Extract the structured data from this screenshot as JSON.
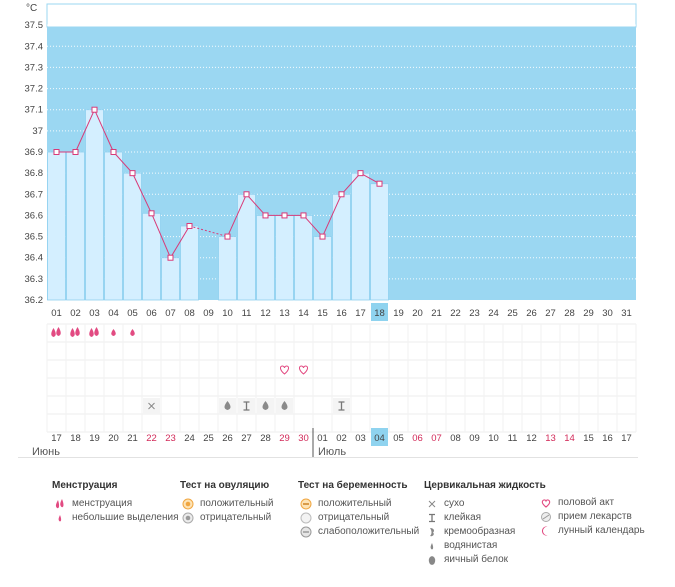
{
  "unit_label": "°C",
  "months": {
    "first": "Июнь",
    "second": "Июль"
  },
  "chart_data": {
    "type": "line",
    "ylim": [
      36.2,
      37.6
    ],
    "y_ticks": [
      "36.2",
      "36.3",
      "36.4",
      "36.5",
      "36.6",
      "36.7",
      "36.8",
      "36.9",
      "37",
      "37.1",
      "37.2",
      "37.3",
      "37.4",
      "37.5"
    ],
    "x_cycle_days": [
      "01",
      "02",
      "03",
      "04",
      "05",
      "06",
      "07",
      "08",
      "09",
      "10",
      "11",
      "12",
      "13",
      "14",
      "15",
      "16",
      "17",
      "18",
      "19",
      "20",
      "21",
      "22",
      "23",
      "24",
      "25",
      "26",
      "27",
      "28",
      "29",
      "30",
      "31"
    ],
    "temperatures": [
      36.9,
      36.9,
      37.1,
      36.9,
      36.8,
      36.61,
      36.4,
      36.55,
      null,
      36.5,
      36.7,
      36.6,
      36.6,
      36.6,
      36.5,
      36.7,
      36.8,
      36.75,
      null,
      null,
      null,
      null,
      null,
      null,
      null,
      null,
      null,
      null,
      null,
      null,
      null
    ],
    "gap_dashed_between": [
      8,
      10
    ],
    "current_day": "18",
    "calendar_dates": [
      "17",
      "18",
      "19",
      "20",
      "21",
      "22",
      "23",
      "24",
      "25",
      "26",
      "27",
      "28",
      "29",
      "30",
      "01",
      "02",
      "03",
      "04",
      "05",
      "06",
      "07",
      "08",
      "09",
      "10",
      "11",
      "12",
      "13",
      "14",
      "15",
      "16",
      "17"
    ],
    "weekend_flags": [
      false,
      false,
      false,
      false,
      false,
      true,
      true,
      false,
      false,
      false,
      false,
      false,
      true,
      true,
      false,
      false,
      false,
      false,
      false,
      true,
      true,
      false,
      false,
      false,
      false,
      false,
      true,
      true,
      false,
      false,
      false
    ],
    "current_date": "04",
    "menstruation": [
      "heavy",
      "heavy",
      "heavy",
      "light",
      "light",
      null,
      null,
      null,
      null,
      null,
      null,
      null,
      null,
      null,
      null,
      null,
      null,
      null,
      null,
      null,
      null,
      null,
      null,
      null,
      null,
      null,
      null,
      null,
      null,
      null,
      null
    ],
    "intercourse": [
      null,
      null,
      null,
      null,
      null,
      null,
      null,
      null,
      null,
      null,
      null,
      null,
      "heart",
      "heart",
      null,
      null,
      null,
      null,
      null,
      null,
      null,
      null,
      null,
      null,
      null,
      null,
      null,
      null,
      null,
      null,
      null
    ],
    "cervical_fluid": [
      null,
      null,
      null,
      null,
      null,
      "dry",
      null,
      null,
      null,
      "watery",
      "sticky",
      "watery",
      "watery",
      null,
      null,
      "sticky",
      null,
      null,
      null,
      null,
      null,
      null,
      null,
      null,
      null,
      null,
      null,
      null,
      null,
      null,
      null
    ]
  },
  "legend": {
    "menstruation": {
      "title": "Менструация",
      "items": [
        "менструация",
        "небольшие выделения"
      ]
    },
    "ovulation": {
      "title": "Тест на овуляцию",
      "items": [
        "положительный",
        "отрицательный"
      ]
    },
    "pregnancy": {
      "title": "Тест на беременность",
      "items": [
        "положительный",
        "отрицательный",
        "слабоположительный"
      ]
    },
    "cervical": {
      "title": "Цервикальная жидкость",
      "items": [
        "сухо",
        "клейкая",
        "кремообразная",
        "водянистая",
        "яичный белок"
      ]
    },
    "other": {
      "items": [
        "половой акт",
        "прием лекарств",
        "лунный календарь"
      ]
    }
  },
  "colors": {
    "plot_bg": "#9bd7f2",
    "bar_fill": "#d4efff",
    "bar_edge": "#8fd0ef",
    "line": "#d93a78",
    "marker_fill": "#ffffff",
    "weekend": "#d22a59",
    "highlight": "#8fd3ef"
  }
}
